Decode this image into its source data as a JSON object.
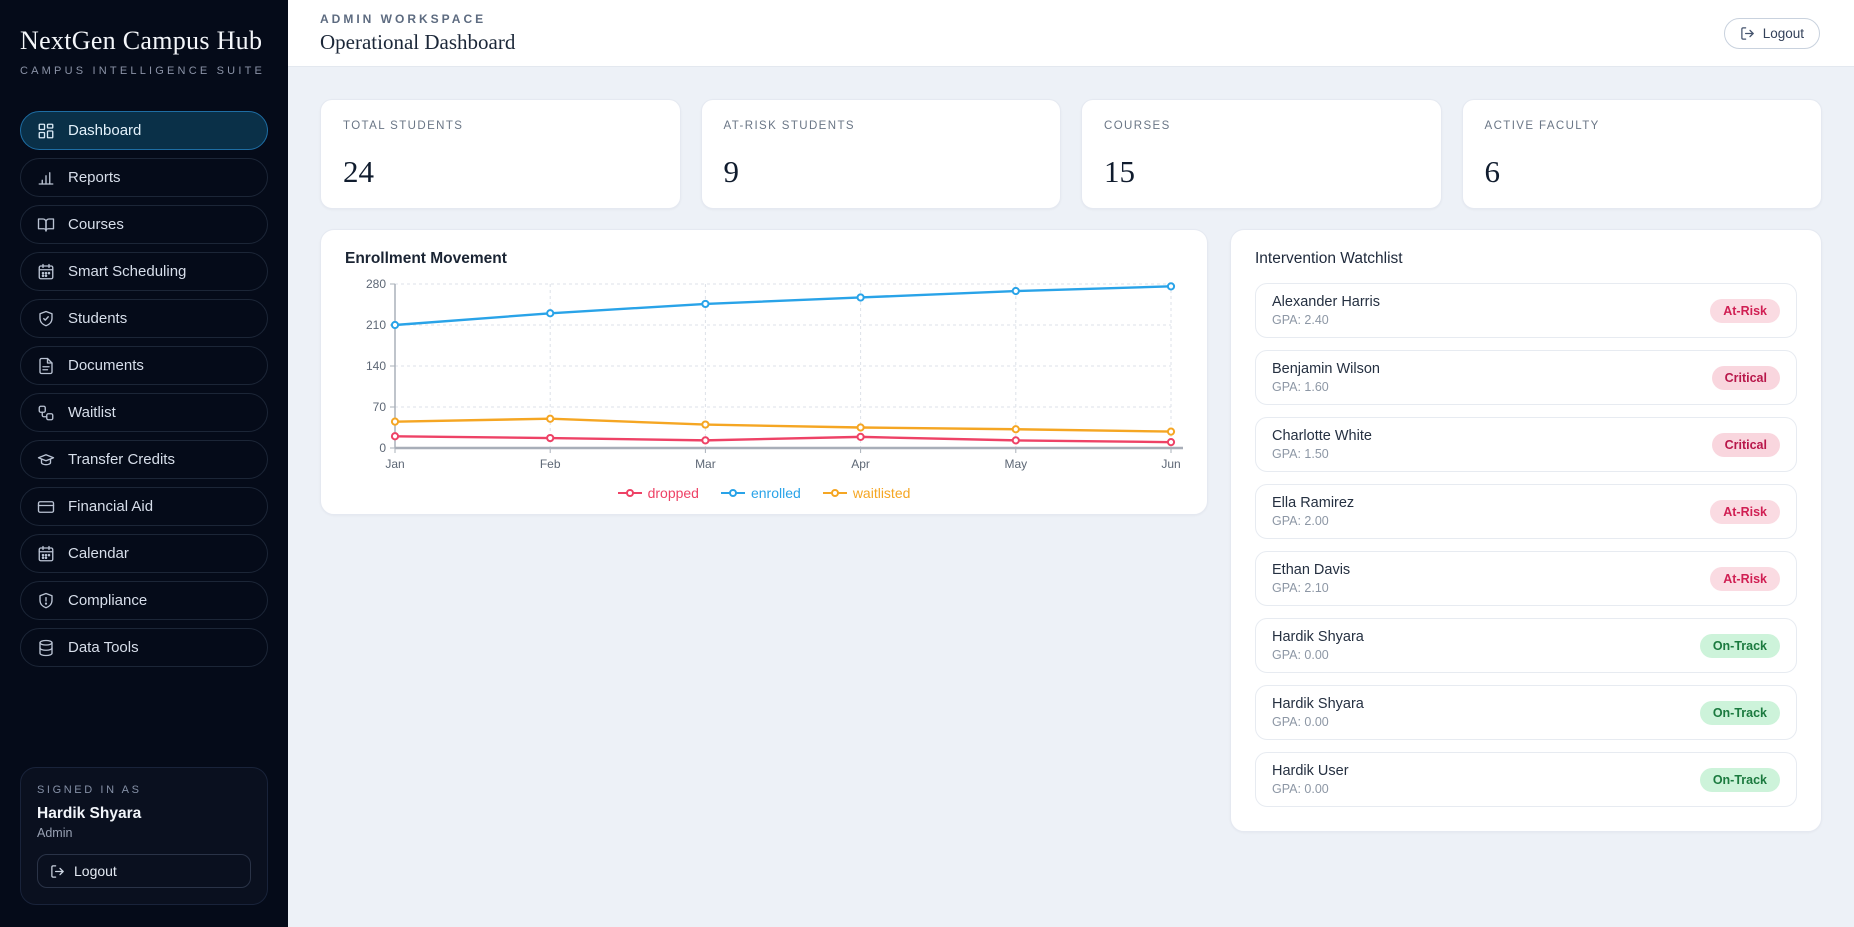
{
  "app": {
    "title": "NextGen Campus Hub",
    "subtitle": "CAMPUS INTELLIGENCE SUITE"
  },
  "sidebar": {
    "items": [
      {
        "label": "Dashboard",
        "icon": "dashboard-icon",
        "active": true
      },
      {
        "label": "Reports",
        "icon": "bar-chart-icon",
        "active": false
      },
      {
        "label": "Courses",
        "icon": "book-open-icon",
        "active": false
      },
      {
        "label": "Smart Scheduling",
        "icon": "calendar-icon",
        "active": false
      },
      {
        "label": "Students",
        "icon": "shield-check-icon",
        "active": false
      },
      {
        "label": "Documents",
        "icon": "file-text-icon",
        "active": false
      },
      {
        "label": "Waitlist",
        "icon": "workflow-icon",
        "active": false
      },
      {
        "label": "Transfer Credits",
        "icon": "graduation-cap-icon",
        "active": false
      },
      {
        "label": "Financial Aid",
        "icon": "credit-card-icon",
        "active": false
      },
      {
        "label": "Calendar",
        "icon": "calendar-icon",
        "active": false
      },
      {
        "label": "Compliance",
        "icon": "shield-alert-icon",
        "active": false
      },
      {
        "label": "Data Tools",
        "icon": "database-icon",
        "active": false
      }
    ],
    "signed_in": {
      "label": "SIGNED IN AS",
      "name": "Hardik Shyara",
      "role": "Admin",
      "logout_label": "Logout"
    }
  },
  "header": {
    "workspace": "ADMIN WORKSPACE",
    "title": "Operational Dashboard",
    "logout_label": "Logout"
  },
  "stats": [
    {
      "label": "TOTAL STUDENTS",
      "value": "24"
    },
    {
      "label": "AT-RISK STUDENTS",
      "value": "9"
    },
    {
      "label": "COURSES",
      "value": "15"
    },
    {
      "label": "ACTIVE FACULTY",
      "value": "6"
    }
  ],
  "chart_card": {
    "title": "Enrollment Movement"
  },
  "chart_data": {
    "type": "line",
    "title": "Enrollment Movement",
    "x": [
      "Jan",
      "Feb",
      "Mar",
      "Apr",
      "May",
      "Jun"
    ],
    "series": [
      {
        "name": "dropped",
        "color": "#ee4266",
        "values": [
          20,
          17,
          13,
          19,
          13,
          10
        ]
      },
      {
        "name": "enrolled",
        "color": "#29a3e8",
        "values": [
          210,
          230,
          246,
          257,
          268,
          276
        ]
      },
      {
        "name": "waitlisted",
        "color": "#f5a623",
        "values": [
          45,
          50,
          40,
          35,
          32,
          28
        ]
      }
    ],
    "xlabel": "",
    "ylabel": "",
    "ylim": [
      0,
      280
    ],
    "yticks": [
      0,
      70,
      140,
      210,
      280
    ],
    "grid": true,
    "legend_position": "bottom"
  },
  "watchlist": {
    "title": "Intervention Watchlist",
    "rows": [
      {
        "name": "Alexander Harris",
        "gpa": "GPA: 2.40",
        "status": "At-Risk"
      },
      {
        "name": "Benjamin Wilson",
        "gpa": "GPA: 1.60",
        "status": "Critical"
      },
      {
        "name": "Charlotte White",
        "gpa": "GPA: 1.50",
        "status": "Critical"
      },
      {
        "name": "Ella Ramirez",
        "gpa": "GPA: 2.00",
        "status": "At-Risk"
      },
      {
        "name": "Ethan Davis",
        "gpa": "GPA: 2.10",
        "status": "At-Risk"
      },
      {
        "name": "Hardik Shyara",
        "gpa": "GPA: 0.00",
        "status": "On-Track"
      },
      {
        "name": "Hardik Shyara",
        "gpa": "GPA: 0.00",
        "status": "On-Track"
      },
      {
        "name": "Hardik User",
        "gpa": "GPA: 0.00",
        "status": "On-Track"
      }
    ]
  },
  "colors": {
    "sidebar_bg": "#050b19",
    "active_nav_bg": "#0a3048",
    "active_nav_border": "#1e6da3",
    "content_bg": "#edf1f7",
    "dropped_line": "#ee4266",
    "enrolled_line": "#29a3e8",
    "waitlisted_line": "#f5a623",
    "at_risk_badge_bg": "#fadbe2",
    "at_risk_badge_text": "#d01f53",
    "critical_badge_text": "#b8174a",
    "on_track_badge_bg": "#cdf3da",
    "on_track_badge_text": "#1b7a3f"
  }
}
